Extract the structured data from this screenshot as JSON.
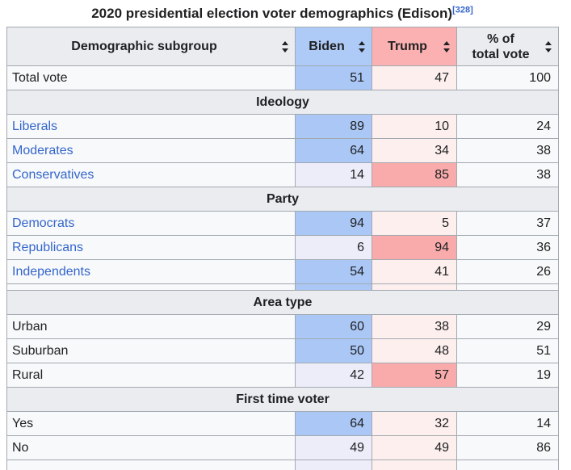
{
  "title": {
    "text": "2020 presidential election voter demographics (Edison)",
    "ref": "[328]"
  },
  "colors": {
    "biden_header": "#aecbf7",
    "trump_header": "#fbb1b1",
    "biden_win": "#aac7f5",
    "biden_lose": "#ededfa",
    "trump_win": "#f9abab",
    "trump_lose": "#fdefee",
    "section_gray": "#eaecf0",
    "cell_bg": "#f8f9fa",
    "border": "#a2a9b1",
    "link": "#3366cc"
  },
  "table": {
    "columns": [
      {
        "key": "demographic-subgroup",
        "label": "Demographic subgroup",
        "sortable": true
      },
      {
        "key": "biden",
        "label": "Biden",
        "sortable": true,
        "bg": "#aecbf7"
      },
      {
        "key": "trump",
        "label": "Trump",
        "sortable": true,
        "bg": "#fbb1b1"
      },
      {
        "key": "pct",
        "label": "% of\ntotal vote",
        "sortable": true
      }
    ],
    "body": [
      {
        "type": "row",
        "label": "Total vote",
        "link": false,
        "biden": 51,
        "trump": 47,
        "pct": 100,
        "highlight": "biden"
      },
      {
        "type": "section",
        "label": "Ideology"
      },
      {
        "type": "row",
        "label": "Liberals",
        "link": true,
        "biden": 89,
        "trump": 10,
        "pct": 24,
        "highlight": "biden"
      },
      {
        "type": "row",
        "label": "Moderates",
        "link": true,
        "biden": 64,
        "trump": 34,
        "pct": 38,
        "highlight": "biden"
      },
      {
        "type": "row",
        "label": "Conservatives",
        "link": true,
        "biden": 14,
        "trump": 85,
        "pct": 38,
        "highlight": "trump"
      },
      {
        "type": "section",
        "label": "Party"
      },
      {
        "type": "row",
        "label": "Democrats",
        "link": true,
        "biden": 94,
        "trump": 5,
        "pct": 37,
        "highlight": "biden"
      },
      {
        "type": "row",
        "label": "Republicans",
        "link": true,
        "biden": 6,
        "trump": 94,
        "pct": 36,
        "highlight": "trump"
      },
      {
        "type": "row",
        "label": "Independents",
        "link": true,
        "biden": 54,
        "trump": 41,
        "pct": 26,
        "highlight": "biden"
      },
      {
        "type": "partial-row",
        "position": "mid",
        "highlight": "biden"
      },
      {
        "type": "section",
        "label": "Area type"
      },
      {
        "type": "row",
        "label": "Urban",
        "link": false,
        "biden": 60,
        "trump": 38,
        "pct": 29,
        "highlight": "biden"
      },
      {
        "type": "row",
        "label": "Suburban",
        "link": false,
        "biden": 50,
        "trump": 48,
        "pct": 51,
        "highlight": "biden"
      },
      {
        "type": "row",
        "label": "Rural",
        "link": false,
        "biden": 42,
        "trump": 57,
        "pct": 19,
        "highlight": "trump"
      },
      {
        "type": "section",
        "label": "First time voter"
      },
      {
        "type": "row",
        "label": "Yes",
        "link": false,
        "biden": 64,
        "trump": 32,
        "pct": 14,
        "highlight": "biden"
      },
      {
        "type": "row",
        "label": "No",
        "link": false,
        "biden": 49,
        "trump": 49,
        "pct": 86,
        "highlight": "none"
      },
      {
        "type": "partial-row",
        "position": "bottom",
        "highlight": "none"
      }
    ]
  }
}
